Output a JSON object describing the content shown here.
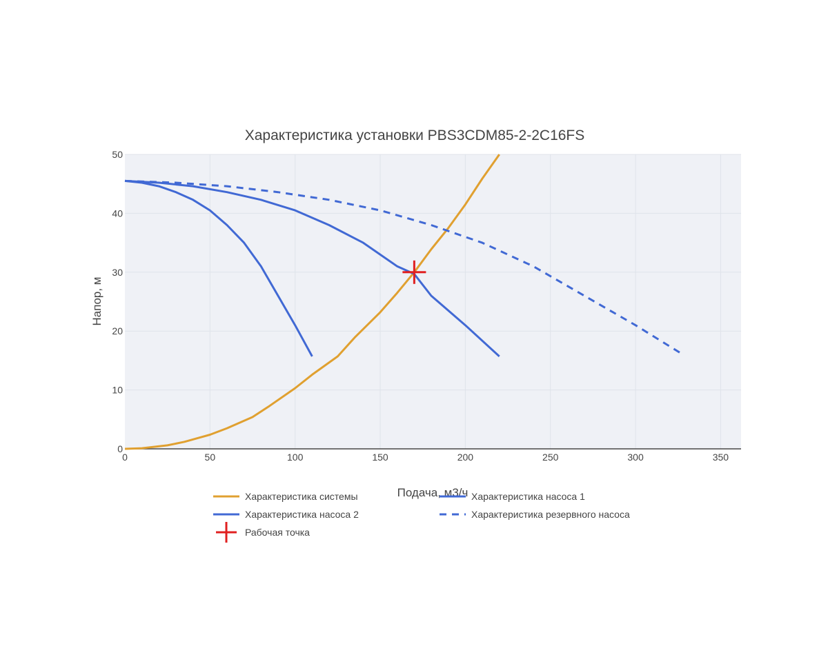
{
  "chart_data": {
    "type": "line",
    "title": "Характеристика установки PBS3CDM85-2-2C16FS",
    "xlabel": "Подача, м3/ч",
    "ylabel": "Напор, м",
    "xlim": [
      0,
      362
    ],
    "ylim": [
      0,
      50
    ],
    "xticks": [
      0,
      50,
      100,
      150,
      200,
      250,
      300,
      350
    ],
    "yticks": [
      0,
      10,
      20,
      30,
      40,
      50
    ],
    "grid": true,
    "legend_position": "bottom",
    "series": [
      {
        "name": "Характеристика системы",
        "color": "#e0a030",
        "dash": "solid",
        "x": [
          0,
          10,
          25,
          35,
          50,
          60,
          75,
          85,
          100,
          110,
          125,
          135,
          150,
          160,
          170,
          180,
          190,
          200,
          210,
          220
        ],
        "y": [
          0,
          0.1,
          0.6,
          1.2,
          2.4,
          3.5,
          5.4,
          7.3,
          10.3,
          12.6,
          15.7,
          18.9,
          23.2,
          26.5,
          30.0,
          33.9,
          37.5,
          41.5,
          45.9,
          50.0
        ]
      },
      {
        "name": "Характеристика насоса 1",
        "color": "#4169d4",
        "dash": "solid",
        "x": [
          0,
          10,
          20,
          30,
          40,
          50,
          60,
          70,
          80,
          90,
          100,
          110
        ],
        "y": [
          45.5,
          45.2,
          44.6,
          43.6,
          42.3,
          40.5,
          38.0,
          35.0,
          31.0,
          26.0,
          21.0,
          15.7
        ]
      },
      {
        "name": "Характеристика насоса 2",
        "color": "#4169d4",
        "dash": "solid",
        "x": [
          0,
          20,
          40,
          60,
          80,
          100,
          120,
          140,
          160,
          170,
          180,
          200,
          220
        ],
        "y": [
          45.5,
          45.2,
          44.6,
          43.6,
          42.3,
          40.5,
          38.0,
          35.0,
          31.0,
          29.7,
          26.0,
          21.0,
          15.7
        ]
      },
      {
        "name": "Характеристика резервного насоса",
        "color": "#4169d4",
        "dash": "dashed",
        "x": [
          0,
          30,
          60,
          90,
          120,
          150,
          180,
          210,
          240,
          270,
          300,
          328
        ],
        "y": [
          45.5,
          45.2,
          44.6,
          43.6,
          42.3,
          40.5,
          38.0,
          35.0,
          31.0,
          26.0,
          21.0,
          16.0
        ]
      }
    ],
    "operating_point": {
      "name": "Рабочая точка",
      "color": "#e02020",
      "x": 170,
      "y": 30
    },
    "legend_order": [
      "Характеристика системы",
      "Характеристика насоса 1",
      "Характеристика насоса 2",
      "Характеристика резервного насоса",
      "Рабочая точка"
    ]
  }
}
